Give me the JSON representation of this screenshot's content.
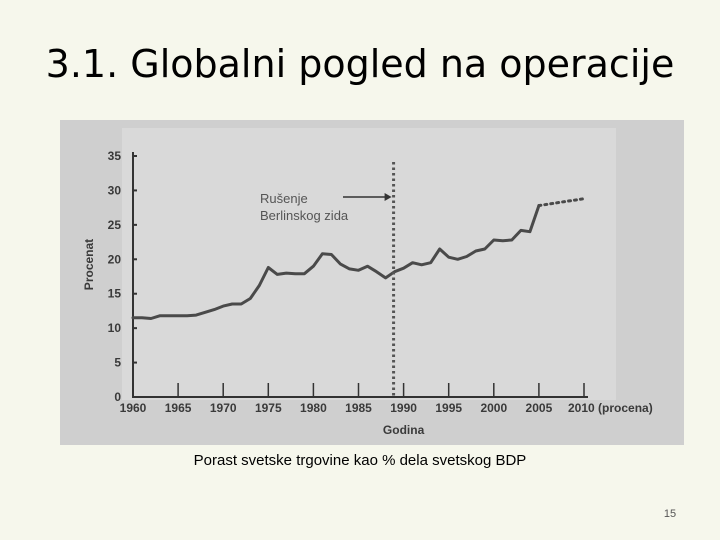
{
  "slide": {
    "title": "3.1. Globalni pogled na operacije",
    "caption": "Porast svetske trgovine kao % dela svetskog BDP",
    "page_number": "15"
  },
  "chart_data": {
    "type": "line",
    "title": "",
    "xlabel": "Godina",
    "ylabel": "Procenat",
    "xlim": [
      1960,
      2010
    ],
    "ylim": [
      0,
      35
    ],
    "x_ticks": [
      1960,
      1965,
      1970,
      1975,
      1980,
      1985,
      1990,
      1995,
      2000,
      2005,
      2010
    ],
    "x_tick_labels": [
      "1960",
      "1965",
      "1970",
      "1975",
      "1980",
      "1985",
      "1990",
      "1995",
      "2000",
      "2005",
      "2010 (procena)"
    ],
    "y_ticks": [
      0,
      5,
      10,
      15,
      20,
      25,
      30,
      35
    ],
    "grid": false,
    "series": [
      {
        "values_x": [
          1960,
          1961,
          1962,
          1963,
          1964,
          1965,
          1966,
          1967,
          1968,
          1969,
          1970,
          1971,
          1972,
          1973,
          1974,
          1975,
          1976,
          1977,
          1978,
          1979,
          1980,
          1981,
          1982,
          1983,
          1984,
          1985,
          1986,
          1987,
          1988,
          1989,
          1990,
          1991,
          1992,
          1993,
          1994,
          1995,
          1996,
          1997,
          1998,
          1999,
          2000,
          2001,
          2002,
          2003,
          2004,
          2005
        ],
        "values_y": [
          11.5,
          11.5,
          11.4,
          11.8,
          11.8,
          11.8,
          11.8,
          11.9,
          12.3,
          12.7,
          13.2,
          13.5,
          13.5,
          14.3,
          16.2,
          18.8,
          17.8,
          18.0,
          17.9,
          17.9,
          19.0,
          20.8,
          20.7,
          19.3,
          18.6,
          18.4,
          19.0,
          18.2,
          17.3,
          18.2,
          18.7,
          19.5,
          19.2,
          19.5,
          21.5,
          20.3,
          20.0,
          20.4,
          21.2,
          21.5,
          22.8,
          22.7,
          22.8,
          24.2,
          24.0,
          27.8
        ],
        "style": "solid",
        "color": "#4a4a4a"
      },
      {
        "values_x": [
          2005,
          2006,
          2007,
          2008,
          2009,
          2010
        ],
        "values_y": [
          27.8,
          28.0,
          28.2,
          28.4,
          28.6,
          28.8
        ],
        "style": "dotted",
        "color": "#4a4a4a"
      }
    ],
    "annotations": [
      {
        "text_lines": [
          "Rušenje",
          "Berlinskog zida"
        ],
        "x": 1989,
        "marker": "vertical-dotted-line-with-arrow"
      }
    ]
  }
}
